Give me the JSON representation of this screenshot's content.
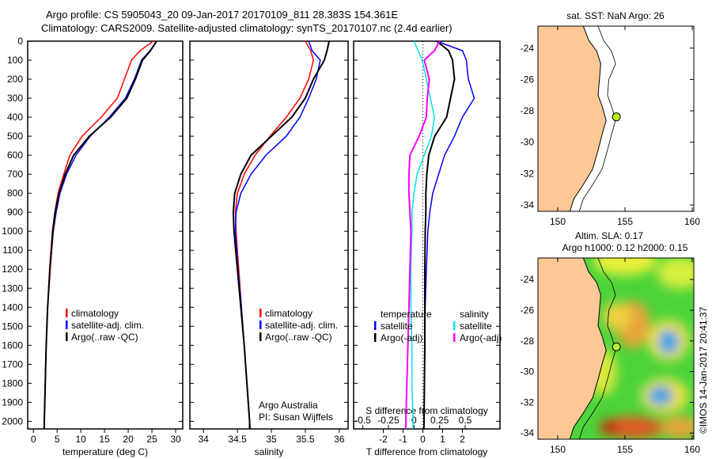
{
  "title_line1": "Argo profile: CS 5905043_20 09-Jan-2017 20170109_811 28.383S 154.361E",
  "title_line2": "Climatology: CARS2009. Satellite-adjusted climatology: synTS_20170107.nc (2.4d earlier)",
  "colors": {
    "climatology": "#ff0000",
    "satellite": "#0000ff",
    "argo": "#000000",
    "sal_sat": "#00e5e5",
    "sal_argo": "#ff00ff",
    "land": "#fdc896"
  },
  "chart_data": [
    {
      "type": "line",
      "xlabel": "temperature (deg C)",
      "xlim": [
        -1.2,
        31.5
      ],
      "ylim": [
        2040,
        0
      ],
      "xticks": [
        "0",
        "5",
        "10",
        "15",
        "20",
        "25",
        "30"
      ],
      "xtickvals": [
        0,
        5,
        10,
        15,
        20,
        25,
        30
      ],
      "yticks": [
        "0",
        "100",
        "200",
        "300",
        "400",
        "500",
        "600",
        "700",
        "800",
        "900",
        "1000",
        "1100",
        "1200",
        "1300",
        "1400",
        "1500",
        "1600",
        "1700",
        "1800",
        "1900",
        "2000"
      ],
      "depth": [
        0,
        50,
        100,
        200,
        300,
        400,
        500,
        600,
        700,
        800,
        900,
        1000,
        1200,
        1400,
        1600,
        1800,
        2000,
        2040
      ],
      "legend": [
        "climatology",
        "satellite-adj. clim.",
        "Argo(..raw -QC)"
      ],
      "series": [
        {
          "name": "climatology",
          "values": [
            25.3,
            22.5,
            20.7,
            19.2,
            17.7,
            14.3,
            10.3,
            7.7,
            6.4,
            5.2,
            4.5,
            4.0,
            3.4,
            3.0,
            2.7,
            2.5,
            2.3,
            2.2
          ]
        },
        {
          "name": "satellite-adj. clim.",
          "values": [
            26.0,
            24.6,
            22.8,
            21.3,
            19.4,
            16.0,
            12.0,
            9.0,
            7.0,
            5.6,
            4.8,
            4.2,
            3.5,
            3.0,
            2.7,
            2.5,
            2.3,
            2.2
          ]
        },
        {
          "name": "Argo(..raw -QC)",
          "values": [
            26.0,
            24.7,
            23.0,
            21.5,
            19.7,
            16.3,
            11.8,
            8.5,
            6.7,
            5.4,
            4.6,
            4.1,
            3.5,
            3.0,
            2.7,
            2.5,
            2.3,
            2.3
          ]
        }
      ]
    },
    {
      "type": "line",
      "xlabel": "salinity",
      "xlim": [
        33.8,
        36.13
      ],
      "ylim": [
        2040,
        0
      ],
      "xticks": [
        "34",
        "34.5",
        "35",
        "35.5",
        "36"
      ],
      "xtickvals": [
        34,
        34.5,
        35,
        35.5,
        36
      ],
      "depth": [
        0,
        50,
        100,
        200,
        300,
        400,
        500,
        600,
        700,
        800,
        900,
        1000,
        1200,
        1400,
        1600,
        1800,
        2000,
        2040
      ],
      "legend": [
        "climatology",
        "satellite-adj. clim.",
        "Argo(..raw -QC)"
      ],
      "annotation": [
        "Argo Australia",
        "PI: Susan Wijffels"
      ],
      "series": [
        {
          "name": "climatology",
          "values": [
            35.5,
            35.58,
            35.62,
            35.55,
            35.42,
            35.22,
            34.98,
            34.76,
            34.6,
            34.5,
            34.47,
            34.48,
            34.52,
            34.56,
            34.6,
            34.64,
            34.68,
            34.69
          ]
        },
        {
          "name": "satellite-adj. clim.",
          "values": [
            35.55,
            35.6,
            35.72,
            35.66,
            35.55,
            35.42,
            35.22,
            34.92,
            34.7,
            34.55,
            34.48,
            34.47,
            34.51,
            34.56,
            34.6,
            34.64,
            34.68,
            34.69
          ]
        },
        {
          "name": "Argo(..raw -QC)",
          "values": [
            35.85,
            35.82,
            35.78,
            35.62,
            35.5,
            35.3,
            35.0,
            34.7,
            34.55,
            34.46,
            34.44,
            34.45,
            34.5,
            34.55,
            34.6,
            34.64,
            34.68,
            34.68
          ]
        }
      ]
    },
    {
      "type": "line",
      "xlabel": "T difference from climatology",
      "x2label": "S difference from climatology",
      "xlim": [
        -3.5,
        3.9
      ],
      "x2lim": [
        -0.59,
        0.84
      ],
      "ylim": [
        2040,
        0
      ],
      "xticks": [
        "-2",
        "-1",
        "0",
        "1",
        "2"
      ],
      "xtickvals": [
        -2,
        -1,
        0,
        1,
        2
      ],
      "x2ticks": [
        "-0.5",
        "-0.25",
        "0",
        "0.25",
        "0.5"
      ],
      "x2tickvals": [
        -0.5,
        -0.25,
        0,
        0.25,
        0.5
      ],
      "depth": [
        0,
        50,
        100,
        200,
        300,
        400,
        500,
        600,
        700,
        800,
        900,
        1000,
        1200,
        1400,
        1600,
        1800,
        2000,
        2040
      ],
      "legend_headers": [
        "temperature",
        "salinity"
      ],
      "legend": [
        "satellite",
        "Argo(-adj)",
        "satellite",
        "Argo(-adj)"
      ],
      "series": [
        {
          "name": "T satellite",
          "axis": "T",
          "values": [
            0.7,
            2.0,
            2.2,
            2.3,
            2.6,
            2.0,
            1.6,
            1.1,
            0.8,
            0.5,
            0.35,
            0.25,
            0.18,
            0.12,
            0.1,
            0.08,
            0.06,
            0.05
          ]
        },
        {
          "name": "T Argo(-adj)",
          "axis": "T",
          "values": [
            0.7,
            1.3,
            1.5,
            1.6,
            1.4,
            1.2,
            0.6,
            0.3,
            0.2,
            0.15,
            0.15,
            0.12,
            0.1,
            0.1,
            0.1,
            0.08,
            0.06,
            0.05
          ]
        },
        {
          "name": "S satellite",
          "axis": "S",
          "values": [
            0.0,
            0.04,
            0.08,
            0.12,
            0.16,
            0.2,
            0.17,
            0.1,
            0.03,
            0.0,
            -0.02,
            -0.02,
            -0.03,
            -0.03,
            -0.02,
            -0.02,
            -0.01,
            -0.01
          ]
        },
        {
          "name": "S Argo(-adj)",
          "axis": "S",
          "values": [
            0.25,
            0.2,
            0.1,
            0.15,
            0.13,
            0.12,
            0.05,
            -0.04,
            -0.05,
            -0.05,
            -0.04,
            -0.03,
            -0.04,
            -0.05,
            -0.06,
            -0.07,
            -0.08,
            -0.08
          ]
        }
      ]
    }
  ],
  "map_top": {
    "title": "sat. SST: NaN Argo: 26",
    "xticks": [
      "150",
      "155",
      "160"
    ],
    "yticks": [
      "-24",
      "-26",
      "-28",
      "-30",
      "-32",
      "-34"
    ],
    "argo_lon": 154.361,
    "argo_lat": -28.383
  },
  "map_bottom": {
    "title1": "Altim. SLA: 0.17",
    "title2": "Argo h1000: 0.12 h2000: 0.15",
    "xticks": [
      "150",
      "155",
      "160"
    ],
    "yticks": [
      "-24",
      "-26",
      "-28",
      "-30",
      "-32",
      "-34"
    ],
    "credit": "©IMOS 14-Jan-2017 20:41:37"
  }
}
